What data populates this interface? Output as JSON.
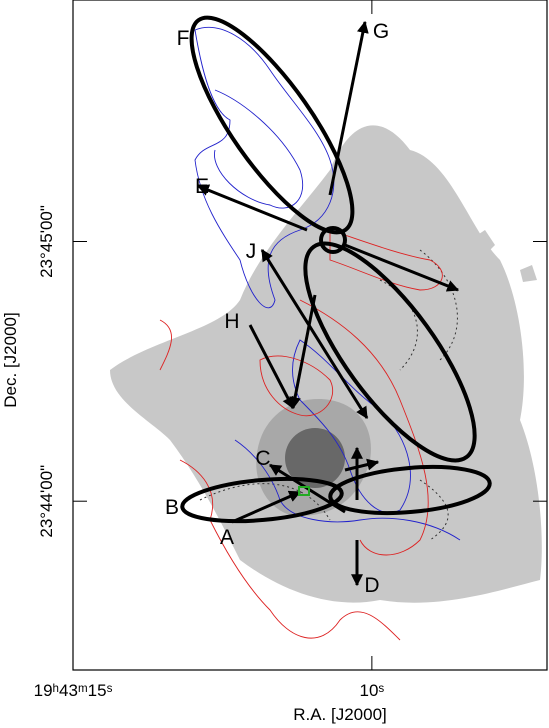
{
  "chart_data": {
    "type": "contour",
    "x_label": "R.A. [J2000]",
    "y_label": "Dec. [J2000]",
    "xlim": [
      15,
      7.07
    ],
    "ylim": [
      43.35,
      45.93
    ],
    "xticks": [
      {
        "value": 15,
        "label": "19ʰ43ᵐ15ˢ"
      },
      {
        "value": 10,
        "label": "10ˢ"
      }
    ],
    "yticks": [
      {
        "value": 44,
        "label": "23°44'00\""
      },
      {
        "value": 45,
        "label": "23°45'00\""
      }
    ],
    "annotations": [
      "F",
      "G",
      "E",
      "J",
      "H",
      "C",
      "B",
      "A",
      "D"
    ]
  }
}
